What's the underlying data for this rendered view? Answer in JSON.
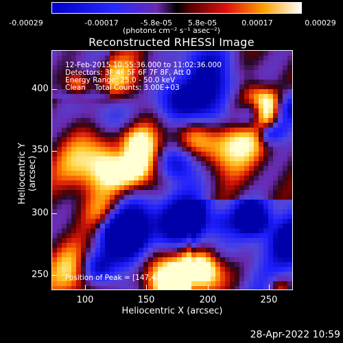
{
  "colorbar": {
    "tick_labels": [
      "-0.00029",
      "-0.00017",
      "-5.8e-05",
      "5.8e-05",
      "0.00017",
      "0.00029"
    ],
    "units_label": "(photons cm⁻² s⁻¹ asec⁻²)"
  },
  "title": "Reconstructed RHESSI Image",
  "info": {
    "line1": "12-Feb-2015 10:55:36.000 to 11:02:36.000",
    "line2": "Detectors: 3F 4F 5F 6F 7F 8F, Att 0",
    "line3": "Energy Range: 25.0 - 50.0 keV",
    "line4": "Clean    Total Counts: 3.00E+03"
  },
  "peak_label": "Position of Peak = [147,420]",
  "axes": {
    "xlabel": "Heliocentric X (arcsec)",
    "ylabel": "Heliocentric Y (arcsec)",
    "xticks": [
      "100",
      "150",
      "200",
      "250"
    ],
    "yticks": [
      "400",
      "350",
      "300",
      "250"
    ]
  },
  "timestamp": "28-Apr-2022 10:59",
  "colors": {
    "negative": "#1818ff",
    "mid": "#6020a0",
    "positive_low": "#c00000",
    "positive_high": "#ffff80"
  }
}
